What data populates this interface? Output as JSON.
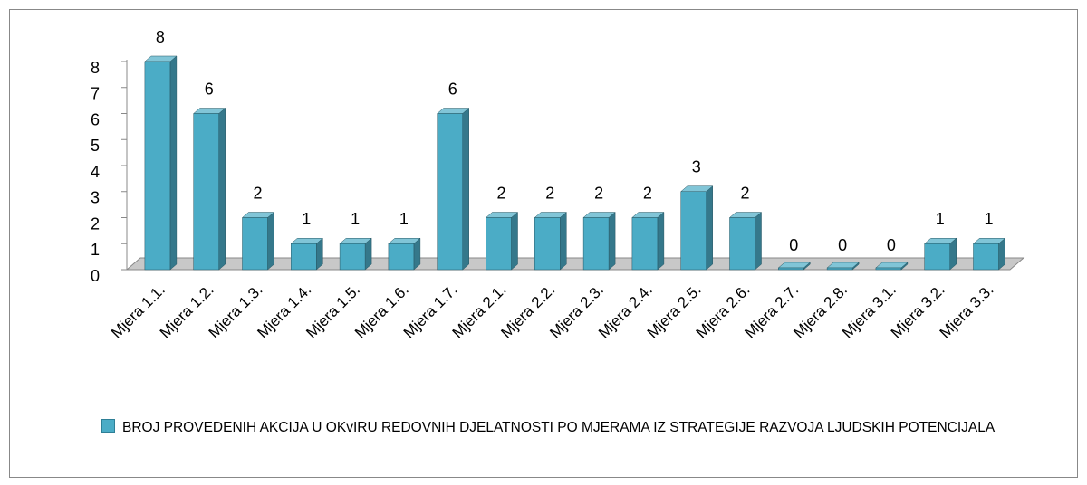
{
  "chart_data": {
    "type": "bar",
    "categories": [
      "Mjera 1.1.",
      "Mjera 1.2.",
      "Mjera 1.3.",
      "Mjera 1.4.",
      "Mjera 1.5.",
      "Mjera 1.6.",
      "Mjera 1.7.",
      "Mjera 2.1.",
      "Mjera 2.2.",
      "Mjera 2.3.",
      "Mjera 2.4.",
      "Mjera 2.5.",
      "Mjera 2.6.",
      "Mjera 2.7.",
      "Mjera 2.8.",
      "Mjera 3.1.",
      "Mjera 3.2.",
      "Mjera 3.3."
    ],
    "series": [
      {
        "name": "BROJ PROVEDENIH AKCIJA U OKvIRU REDOVNIH DJELATNOSTI PO MJERAMA IZ STRATEGIJE RAZVOJA LJUDSKIH POTENCIJALA",
        "color": "#4bacc6",
        "values": [
          8,
          6,
          2,
          1,
          1,
          1,
          6,
          2,
          2,
          2,
          2,
          3,
          2,
          0,
          0,
          0,
          1,
          1
        ]
      }
    ],
    "ylim": [
      0,
      8
    ],
    "yticks": [
      0,
      1,
      2,
      3,
      4,
      5,
      6,
      7,
      8
    ],
    "grid": false,
    "legend": "bottom"
  }
}
